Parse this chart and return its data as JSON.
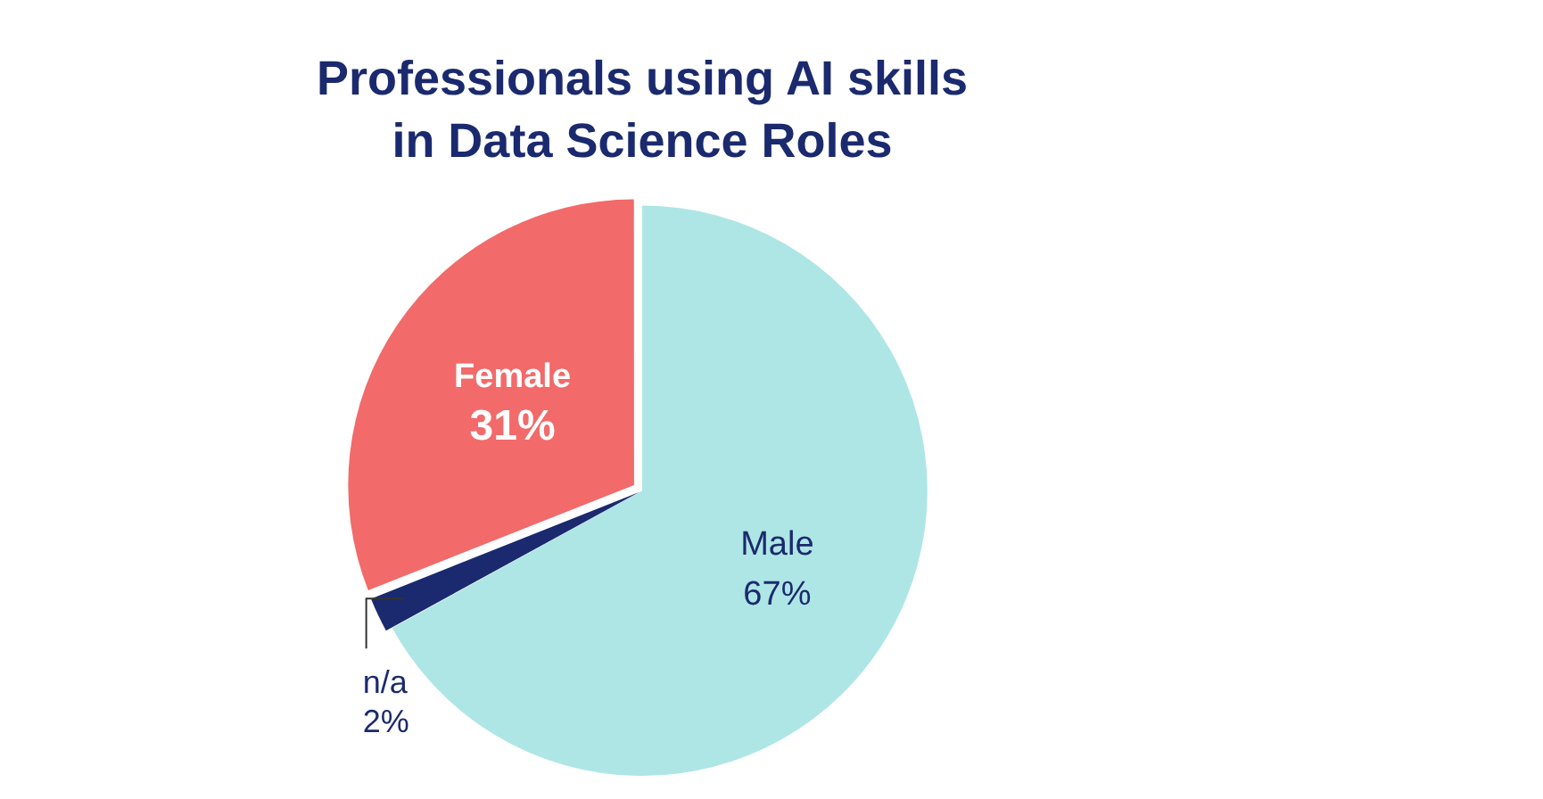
{
  "chart_data": {
    "type": "pie",
    "title": [
      "Professionals using AI skills",
      "in Data Science Roles"
    ],
    "categories": [
      "Male",
      "n/a",
      "Female"
    ],
    "values": [
      67,
      2,
      31
    ],
    "value_labels": [
      "67%",
      "2%",
      "31%"
    ],
    "colors": [
      "#aee6e6",
      "#1b2a6e",
      "#f26a6a"
    ],
    "legend": false
  }
}
